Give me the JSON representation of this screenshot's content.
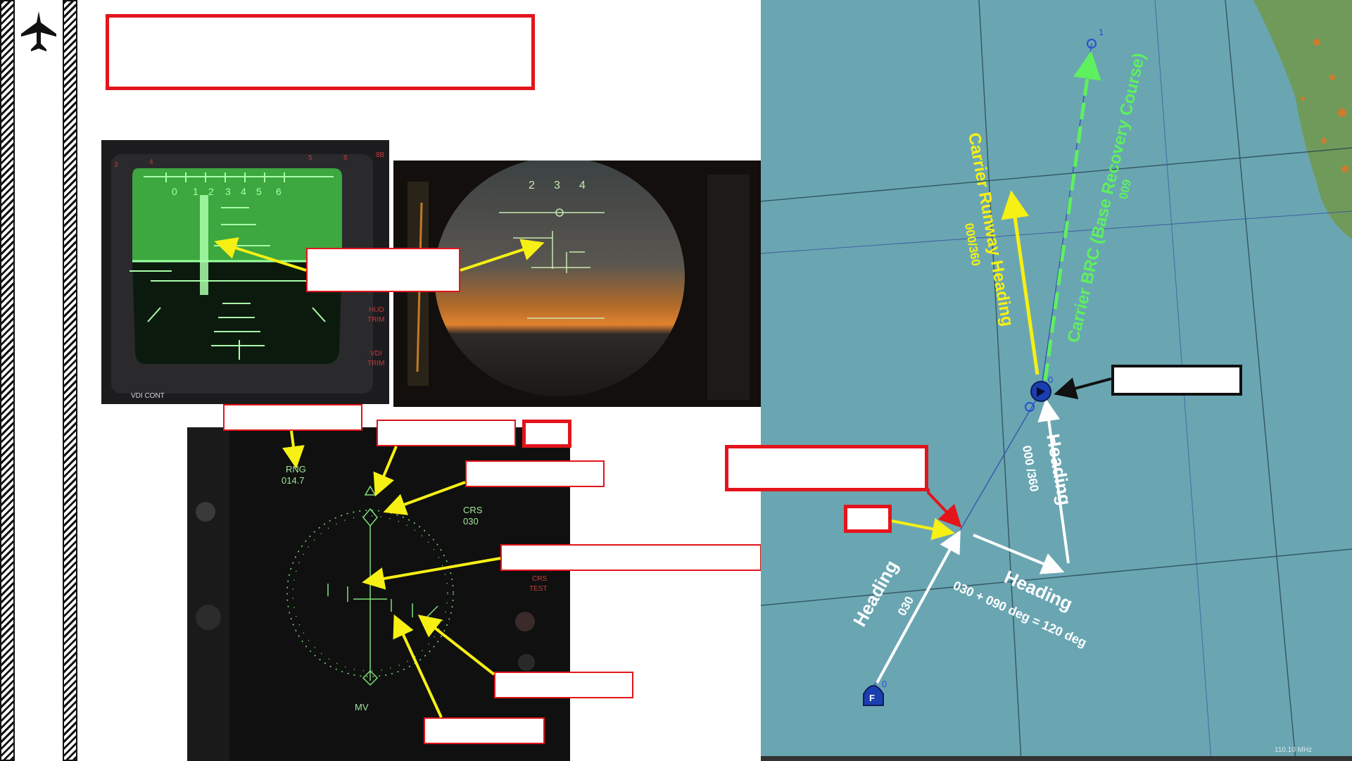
{
  "vdi": {
    "labels": [
      "HUD",
      "TRIM",
      "VDI",
      "TRIM",
      "VDI CONT"
    ],
    "scale_nums": [
      "0",
      "1",
      "2",
      "3",
      "4",
      "5",
      "6"
    ],
    "top_nums": [
      "3",
      "4",
      "5",
      "6",
      "8B"
    ]
  },
  "hud": {
    "scale_nums": [
      "2",
      "3",
      "4"
    ]
  },
  "hsd": {
    "rng_label": "RNG",
    "rng_value": "014.7",
    "crs_label": "CRS",
    "crs_value": "030",
    "mv_label": "MV",
    "side_label_1": "CRS",
    "side_label_2": "TEST"
  },
  "map": {
    "carrier_runway_heading": "Carrier Runway Heading",
    "carrier_runway_value": "000/360",
    "carrier_brc": "Carrier BRC (Base Recovery Course)",
    "carrier_brc_value": "009",
    "heading_right": "Heading",
    "heading_right_value": "000 /360",
    "heading_left": "Heading",
    "heading_left_value": "030",
    "heading_bottom": "Heading",
    "heading_bottom_value": "030 + 090 deg = 120 deg",
    "wp_1": "1",
    "wp_0": "0",
    "wp_0b": "0",
    "player_marker": "F",
    "freq": "110.10 MHz",
    "colors": {
      "water": "#6aa6b2",
      "land": "#6f9a5a",
      "yellow": "#f6f014",
      "green": "#5ef05e"
    }
  }
}
